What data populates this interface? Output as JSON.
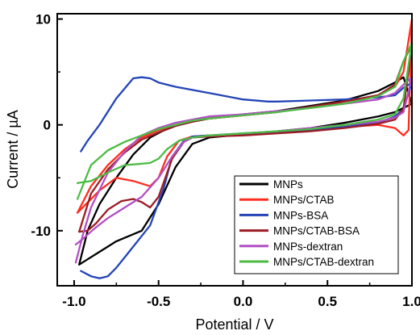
{
  "chart_data": {
    "type": "line",
    "xlabel": "Potential / V",
    "ylabel": "Current / µA",
    "xlim": [
      -1.1,
      1.0
    ],
    "ylim": [
      -15.2,
      10.5
    ],
    "xticks": [
      -1.0,
      -0.5,
      0.0,
      0.5,
      1.0
    ],
    "xtick_labels": [
      "-1.0",
      "-0.5",
      "0.0",
      "0.5",
      "1.0"
    ],
    "yticks": [
      -10,
      0,
      10
    ],
    "ytick_labels": [
      "-10",
      "0",
      "10"
    ],
    "grid": false,
    "legend_position": "lower-right",
    "series": [
      {
        "name": "MNPs",
        "color": "#000000",
        "x": [
          -0.97,
          -0.92,
          -0.85,
          -0.75,
          -0.6,
          -0.5,
          -0.4,
          -0.3,
          -0.2,
          0.0,
          0.2,
          0.4,
          0.6,
          0.8,
          0.9,
          0.95,
          1.0,
          0.95,
          0.9,
          0.8,
          0.6,
          0.4,
          0.2,
          0.0,
          -0.2,
          -0.3,
          -0.4,
          -0.48,
          -0.55,
          -0.65,
          -0.75,
          -0.85,
          -0.92,
          -0.97
        ],
        "y": [
          -13.2,
          -12.7,
          -12.0,
          -11.0,
          -10.0,
          -7.5,
          -4.0,
          -1.8,
          -1.2,
          -0.9,
          -0.6,
          -0.3,
          0.2,
          0.8,
          1.2,
          1.6,
          2.0,
          4.5,
          4.0,
          3.2,
          2.3,
          1.8,
          1.3,
          1.0,
          0.6,
          0.3,
          -0.1,
          -0.6,
          -1.2,
          -2.8,
          -5.0,
          -7.5,
          -10.0,
          -13.2
        ]
      },
      {
        "name": "MNPs/CTAB",
        "color": "#ff2d1f",
        "x": [
          -0.98,
          -0.93,
          -0.85,
          -0.75,
          -0.65,
          -0.55,
          -0.5,
          -0.45,
          -0.38,
          -0.3,
          -0.2,
          0.0,
          0.2,
          0.4,
          0.6,
          0.8,
          0.9,
          0.95,
          0.98,
          1.0,
          0.98,
          0.95,
          0.9,
          0.8,
          0.6,
          0.4,
          0.2,
          0.0,
          -0.2,
          -0.3,
          -0.4,
          -0.5,
          -0.6,
          -0.7,
          -0.8,
          -0.9,
          -0.98
        ],
        "y": [
          -8.3,
          -7.5,
          -6.2,
          -5.0,
          -5.3,
          -5.8,
          -5.0,
          -3.0,
          -1.5,
          -1.1,
          -1.0,
          -0.9,
          -0.7,
          -0.5,
          -0.2,
          0.0,
          -0.3,
          -1.0,
          -0.5,
          10.0,
          8.0,
          5.0,
          3.6,
          2.8,
          2.2,
          1.7,
          1.2,
          0.9,
          0.6,
          0.4,
          0.0,
          -0.5,
          -1.2,
          -2.3,
          -3.8,
          -5.8,
          -8.3
        ]
      },
      {
        "name": "MNPs-BSA",
        "color": "#2344b8",
        "x": [
          -0.96,
          -0.9,
          -0.85,
          -0.8,
          -0.75,
          -0.7,
          -0.65,
          -0.55,
          -0.47,
          -0.42,
          -0.35,
          -0.3,
          -0.2,
          0.0,
          0.2,
          0.4,
          0.6,
          0.8,
          0.9,
          0.95,
          1.0,
          0.95,
          0.9,
          0.8,
          0.6,
          0.4,
          0.2,
          0.15,
          0.0,
          -0.2,
          -0.4,
          -0.5,
          -0.55,
          -0.6,
          -0.65,
          -0.75,
          -0.85,
          -0.92,
          -0.96
        ],
        "y": [
          -13.8,
          -14.3,
          -14.5,
          -14.3,
          -13.5,
          -12.5,
          -11.5,
          -9.5,
          -6.0,
          -3.0,
          -1.5,
          -1.1,
          -1.0,
          -0.9,
          -0.7,
          -0.5,
          -0.2,
          0.2,
          0.8,
          1.5,
          4.0,
          3.5,
          2.8,
          2.6,
          2.4,
          2.3,
          2.2,
          2.2,
          2.4,
          3.0,
          3.6,
          4.0,
          4.4,
          4.5,
          4.4,
          2.5,
          0.0,
          -1.5,
          -2.5
        ]
      },
      {
        "name": "MNPs/CTAB-BSA",
        "color": "#9c1c24",
        "x": [
          -0.97,
          -0.92,
          -0.87,
          -0.8,
          -0.72,
          -0.65,
          -0.6,
          -0.55,
          -0.5,
          -0.42,
          -0.35,
          -0.3,
          -0.2,
          0.0,
          0.2,
          0.4,
          0.6,
          0.8,
          0.9,
          0.95,
          1.0,
          0.95,
          0.9,
          0.8,
          0.6,
          0.4,
          0.2,
          0.0,
          -0.2,
          -0.3,
          -0.4,
          -0.5,
          -0.6,
          -0.7,
          -0.8,
          -0.9,
          -0.97
        ],
        "y": [
          -10.1,
          -10.0,
          -9.3,
          -8.0,
          -7.2,
          -7.0,
          -7.3,
          -7.8,
          -6.8,
          -3.2,
          -1.6,
          -1.2,
          -1.1,
          -1.0,
          -0.8,
          -0.6,
          -0.3,
          0.1,
          0.5,
          1.5,
          7.6,
          6.0,
          3.8,
          2.8,
          2.2,
          1.7,
          1.2,
          0.9,
          0.6,
          0.3,
          -0.1,
          -0.7,
          -1.4,
          -2.6,
          -4.2,
          -6.5,
          -10.1
        ]
      },
      {
        "name": "MNPs-dextran",
        "color": "#b24fc4",
        "x": [
          -0.99,
          -0.95,
          -0.88,
          -0.8,
          -0.7,
          -0.6,
          -0.5,
          -0.42,
          -0.35,
          -0.3,
          -0.2,
          0.0,
          0.2,
          0.4,
          0.6,
          0.8,
          0.9,
          0.95,
          1.0,
          0.95,
          0.9,
          0.8,
          0.6,
          0.4,
          0.2,
          0.0,
          -0.2,
          -0.3,
          -0.4,
          -0.5,
          -0.6,
          -0.7,
          -0.8,
          -0.9,
          -0.95,
          -0.99
        ],
        "y": [
          -11.3,
          -10.8,
          -9.8,
          -8.8,
          -7.8,
          -6.8,
          -5.0,
          -3.0,
          -1.6,
          -1.2,
          -1.0,
          -0.8,
          -0.6,
          -0.3,
          0.0,
          0.3,
          0.7,
          1.2,
          4.5,
          3.8,
          3.0,
          2.4,
          2.0,
          1.6,
          1.3,
          1.0,
          0.8,
          0.5,
          0.2,
          -0.3,
          -1.0,
          -2.5,
          -4.5,
          -7.8,
          -10.5,
          -13.0
        ]
      },
      {
        "name": "MNPs/CTAB-dextran",
        "color": "#4cbb45",
        "x": [
          -0.98,
          -0.9,
          -0.8,
          -0.7,
          -0.62,
          -0.55,
          -0.5,
          -0.45,
          -0.38,
          -0.3,
          -0.2,
          0.0,
          0.2,
          0.4,
          0.6,
          0.8,
          0.9,
          0.95,
          1.0,
          0.95,
          0.9,
          0.8,
          0.6,
          0.4,
          0.2,
          0.0,
          -0.2,
          -0.3,
          -0.4,
          -0.5,
          -0.6,
          -0.7,
          -0.8,
          -0.9,
          -0.98
        ],
        "y": [
          -5.5,
          -5.3,
          -4.5,
          -3.8,
          -3.7,
          -3.6,
          -3.2,
          -2.3,
          -1.5,
          -1.2,
          -1.0,
          -0.8,
          -0.6,
          -0.4,
          0.0,
          0.5,
          1.0,
          2.5,
          7.8,
          6.0,
          3.6,
          2.7,
          2.0,
          1.6,
          1.2,
          0.9,
          0.6,
          0.4,
          0.0,
          -0.4,
          -1.0,
          -1.6,
          -2.4,
          -3.8,
          -7.0
        ]
      }
    ]
  }
}
